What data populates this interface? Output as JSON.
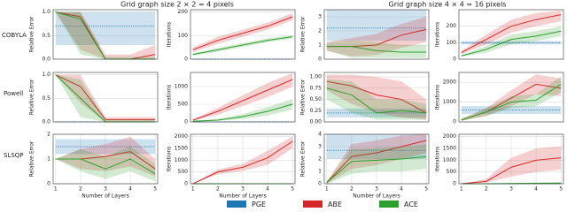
{
  "group_titles": [
    "Grid graph size 2 × 2 = 4 pixels",
    "Grid graph size 4 × 4 = 16 pixels"
  ],
  "row_labels": [
    "COBYLA",
    "Powell",
    "SLSQP"
  ],
  "legend": [
    {
      "name": "PGE",
      "color": "#1f77b4"
    },
    {
      "name": "ABE",
      "color": "#d62728"
    },
    {
      "name": "ACE",
      "color": "#2ca02c"
    }
  ],
  "chart_data": [
    {
      "type": "line",
      "ylabel": "Relative Error",
      "x": [
        1,
        2,
        3,
        4,
        5
      ],
      "xlim": [
        0.9,
        5.1
      ],
      "ylim": [
        0,
        1.05
      ],
      "yticks": [
        {
          "value": 0,
          "label": "0.0"
        },
        0.5,
        {
          "value": 1,
          "label": "1.0"
        }
      ],
      "grid": true,
      "series": [
        {
          "linestyle": "dotted",
          "values": [
            0.7,
            0.7,
            0.7,
            0.7,
            0.7
          ],
          "lower": [
            0.3,
            0.3,
            0.3,
            0.3,
            0.3
          ],
          "upper": [
            1.0,
            1.0,
            1.0,
            1.0,
            1.0
          ]
        },
        {
          "values": [
            1.0,
            0.9,
            0,
            0,
            0.1
          ],
          "lower": [
            1.0,
            0.2,
            0,
            0,
            0
          ],
          "upper": [
            1.0,
            1.0,
            0.1,
            0.1,
            0.3
          ]
        },
        {
          "values": [
            1.0,
            0.85,
            0,
            0,
            0
          ],
          "lower": [
            1.0,
            0.1,
            0,
            0,
            0
          ],
          "upper": [
            1.0,
            1.0,
            0.05,
            0.05,
            0.05
          ]
        }
      ]
    },
    {
      "type": "line",
      "ylabel": "Iterations",
      "x": [
        1,
        2,
        3,
        4,
        5
      ],
      "xlim": [
        0.9,
        5.1
      ],
      "ylim": [
        0,
        210
      ],
      "yticks": [
        0,
        100,
        200
      ],
      "grid": true,
      "series": [
        {
          "linestyle": "dotted",
          "values": [
            0,
            0,
            0,
            0,
            0
          ]
        },
        {
          "values": [
            40,
            80,
            110,
            140,
            180
          ],
          "lower": [
            30,
            65,
            95,
            125,
            165
          ],
          "upper": [
            50,
            95,
            125,
            155,
            195
          ]
        },
        {
          "values": [
            20,
            40,
            60,
            80,
            95
          ],
          "lower": [
            15,
            32,
            52,
            72,
            88
          ],
          "upper": [
            25,
            48,
            68,
            88,
            102
          ]
        }
      ]
    },
    {
      "type": "line",
      "ylabel": "Relative Error",
      "x": [
        1,
        2,
        3,
        4,
        5
      ],
      "xlim": [
        0.9,
        5.1
      ],
      "ylim": [
        0,
        3.5
      ],
      "yticks": [
        0,
        1,
        2,
        3
      ],
      "grid": true,
      "series": [
        {
          "linestyle": "dotted",
          "values": [
            2.2,
            2.2,
            2.2,
            2.2,
            2.2
          ],
          "lower": [
            1.3,
            1.3,
            1.3,
            1.3,
            1.3
          ],
          "upper": [
            3.5,
            3.5,
            3.5,
            3.5,
            3.5
          ]
        },
        {
          "values": [
            0.9,
            0.9,
            1.0,
            1.7,
            2.1
          ],
          "lower": [
            0.6,
            0.2,
            0.3,
            0.8,
            1.2
          ],
          "upper": [
            1.2,
            1.5,
            1.8,
            2.5,
            3.0
          ]
        },
        {
          "values": [
            0.9,
            0.9,
            0.6,
            0.5,
            0.5
          ],
          "lower": [
            0.6,
            0.1,
            0.1,
            0.1,
            0.1
          ],
          "upper": [
            1.2,
            1.3,
            1.2,
            1.0,
            1.0
          ]
        }
      ]
    },
    {
      "type": "line",
      "ylabel": "Iterations",
      "x": [
        1,
        2,
        3,
        4,
        5
      ],
      "xlim": [
        0.9,
        5.1
      ],
      "ylim": [
        0,
        300
      ],
      "yticks": [
        0,
        100,
        200
      ],
      "grid": true,
      "series": [
        {
          "linestyle": "dotted",
          "values": [
            100,
            100,
            100,
            100,
            100
          ],
          "lower": [
            90,
            90,
            90,
            90,
            90
          ],
          "upper": [
            110,
            110,
            110,
            110,
            110
          ]
        },
        {
          "values": [
            40,
            120,
            200,
            240,
            270
          ],
          "lower": [
            30,
            90,
            160,
            200,
            230
          ],
          "upper": [
            50,
            150,
            240,
            280,
            295
          ]
        },
        {
          "values": [
            20,
            60,
            120,
            140,
            170
          ],
          "lower": [
            15,
            40,
            90,
            110,
            140
          ],
          "upper": [
            25,
            80,
            150,
            170,
            200
          ]
        }
      ]
    },
    {
      "type": "line",
      "ylabel": "Relative Error",
      "x": [
        1,
        2,
        3,
        4,
        5
      ],
      "xlim": [
        0.9,
        5.1
      ],
      "ylim": [
        0,
        1.05
      ],
      "yticks": [
        {
          "value": 0,
          "label": "0.0"
        },
        0.5,
        {
          "value": 1,
          "label": "1.0"
        }
      ],
      "grid": true,
      "series": [
        {
          "linestyle": "dotted",
          "values": [
            0,
            0,
            0,
            0,
            0
          ]
        },
        {
          "values": [
            1.0,
            0.75,
            0.05,
            0.05,
            0.05
          ],
          "lower": [
            1.0,
            0.4,
            0,
            0,
            0
          ],
          "upper": [
            1.0,
            1.0,
            0.1,
            0.1,
            0.1
          ]
        },
        {
          "values": [
            1.0,
            0.5,
            0,
            0,
            0
          ],
          "lower": [
            1.0,
            0.1,
            0,
            0,
            0
          ],
          "upper": [
            1.0,
            0.9,
            0.05,
            0.05,
            0.05
          ]
        }
      ]
    },
    {
      "type": "line",
      "ylabel": "Iterations",
      "x": [
        1,
        2,
        3,
        4,
        5
      ],
      "xlim": [
        0.9,
        5.1
      ],
      "ylim": [
        0,
        1400
      ],
      "yticks": [
        0,
        500,
        1000
      ],
      "grid": true,
      "series": [
        {
          "linestyle": "dotted",
          "values": [
            0,
            0,
            0,
            0,
            0
          ]
        },
        {
          "values": [
            50,
            300,
            600,
            900,
            1200
          ],
          "lower": [
            30,
            200,
            450,
            700,
            1000
          ],
          "upper": [
            70,
            400,
            750,
            1100,
            1380
          ]
        },
        {
          "values": [
            20,
            50,
            150,
            300,
            500
          ],
          "lower": [
            10,
            30,
            80,
            180,
            350
          ],
          "upper": [
            30,
            80,
            220,
            420,
            650
          ]
        }
      ]
    },
    {
      "type": "line",
      "ylabel": "Relative Error",
      "x": [
        1,
        2,
        3,
        4,
        5
      ],
      "xlim": [
        0.9,
        5.1
      ],
      "ylim": [
        0,
        1.1
      ],
      "yticks": [
        {
          "value": 0,
          "label": "0.00"
        },
        0.25,
        {
          "value": 0.5,
          "label": "0.50"
        },
        0.75,
        {
          "value": 1,
          "label": "1.00"
        }
      ],
      "grid": true,
      "series": [
        {
          "linestyle": "dotted",
          "values": [
            0.2,
            0.2,
            0.2,
            0.2,
            0.2
          ],
          "lower": [
            0.1,
            0.1,
            0.1,
            0.1,
            0.1
          ],
          "upper": [
            0.3,
            0.3,
            0.3,
            0.3,
            0.3
          ]
        },
        {
          "values": [
            0.9,
            0.8,
            0.6,
            0.5,
            0.2
          ],
          "lower": [
            0.7,
            0.4,
            0.2,
            0.1,
            0.05
          ],
          "upper": [
            1.05,
            1.05,
            1.0,
            0.9,
            0.5
          ]
        },
        {
          "values": [
            0.75,
            0.6,
            0.2,
            0.25,
            0.2
          ],
          "lower": [
            0.5,
            0.2,
            0.05,
            0.05,
            0.05
          ],
          "upper": [
            0.95,
            0.9,
            0.5,
            0.5,
            0.4
          ]
        }
      ]
    },
    {
      "type": "line",
      "ylabel": "Iterations",
      "x": [
        1,
        2,
        3,
        4,
        5
      ],
      "xlim": [
        0.9,
        5.1
      ],
      "ylim": [
        0,
        2500
      ],
      "yticks": [
        0,
        1000,
        2000
      ],
      "grid": true,
      "series": [
        {
          "linestyle": "dotted",
          "values": [
            600,
            600,
            600,
            600,
            600
          ],
          "lower": [
            400,
            400,
            400,
            400,
            400
          ],
          "upper": [
            800,
            800,
            800,
            800,
            800
          ]
        },
        {
          "values": [
            100,
            500,
            1200,
            1900,
            1700
          ],
          "lower": [
            50,
            300,
            800,
            1400,
            1300
          ],
          "upper": [
            150,
            700,
            1600,
            2400,
            2200
          ]
        },
        {
          "values": [
            100,
            500,
            1000,
            1100,
            1900
          ],
          "lower": [
            50,
            300,
            700,
            800,
            1500
          ],
          "upper": [
            150,
            700,
            1300,
            1400,
            2300
          ]
        }
      ]
    },
    {
      "type": "line",
      "ylabel": "Relative Error",
      "xlabel": "Number of Layers",
      "x": [
        1,
        2,
        3,
        4,
        5
      ],
      "xlim": [
        0.9,
        5.1
      ],
      "xticks": [
        1,
        2,
        3,
        4,
        5
      ],
      "ylim": [
        0,
        2
      ],
      "yticks": [
        0,
        1,
        2
      ],
      "grid": true,
      "series": [
        {
          "linestyle": "dotted",
          "values": [
            1.5,
            1.5,
            1.5,
            1.5,
            1.5
          ],
          "lower": [
            1.2,
            1.2,
            1.2,
            1.2,
            1.2
          ],
          "upper": [
            1.8,
            1.8,
            1.8,
            1.8,
            1.8
          ]
        },
        {
          "values": [
            1,
            1,
            1.1,
            1.3,
            0.6
          ],
          "lower": [
            1,
            0.6,
            0.5,
            0.7,
            0.3
          ],
          "upper": [
            1,
            1.4,
            1.6,
            1.9,
            1.0
          ]
        },
        {
          "values": [
            1,
            1,
            0.6,
            1.0,
            0.4
          ],
          "lower": [
            1,
            0.5,
            0.2,
            0.5,
            0.1
          ],
          "upper": [
            1,
            1.4,
            1.1,
            1.5,
            0.8
          ]
        }
      ]
    },
    {
      "type": "line",
      "ylabel": "Iterations",
      "xlabel": "Number of Layers",
      "x": [
        1,
        2,
        3,
        4,
        5
      ],
      "xlim": [
        0.9,
        5.1
      ],
      "xticks": [
        1,
        2,
        3,
        4,
        5
      ],
      "ylim": [
        0,
        2100
      ],
      "yticks": [
        0,
        500,
        1000,
        1500,
        2000
      ],
      "grid": true,
      "series": [
        {
          "linestyle": "dotted",
          "values": [
            0,
            0,
            0,
            0,
            0
          ]
        },
        {
          "values": [
            0,
            500,
            700,
            1100,
            1800
          ],
          "lower": [
            0,
            400,
            550,
            800,
            1500
          ],
          "upper": [
            0,
            600,
            850,
            1400,
            2000
          ]
        },
        {
          "values": [
            0,
            0,
            0,
            0,
            0
          ]
        }
      ]
    },
    {
      "type": "line",
      "ylabel": "Relative Error",
      "xlabel": "Number of Layers",
      "x": [
        1,
        2,
        3,
        4,
        5
      ],
      "xlim": [
        0.9,
        5.1
      ],
      "xticks": [
        1,
        2,
        3,
        4,
        5
      ],
      "ylim": [
        0,
        4
      ],
      "yticks": [
        0,
        1,
        2,
        3,
        4
      ],
      "grid": true,
      "series": [
        {
          "linestyle": "dotted",
          "values": [
            2.7,
            2.7,
            2.7,
            2.7,
            2.7
          ],
          "lower": [
            2,
            2,
            2,
            2,
            2
          ],
          "upper": [
            4,
            4,
            4,
            4,
            4
          ]
        },
        {
          "values": [
            0.1,
            2.2,
            2.5,
            3,
            3.5
          ],
          "lower": [
            0,
            1.2,
            1.5,
            2,
            2.5
          ],
          "upper": [
            0.2,
            3.2,
            3.5,
            3.9,
            4
          ]
        },
        {
          "values": [
            0.1,
            1.8,
            1.9,
            2,
            2.2
          ],
          "lower": [
            0,
            0.8,
            1,
            1,
            1.2
          ],
          "upper": [
            0.2,
            2.8,
            2.9,
            3,
            3.2
          ]
        }
      ]
    },
    {
      "type": "line",
      "ylabel": "Iterations",
      "x": [
        1,
        2,
        3,
        4,
        5
      ],
      "xlim": [
        0.9,
        5.1
      ],
      "xticks": [
        1,
        2,
        3,
        4,
        5
      ],
      "ylim": [
        0,
        2100
      ],
      "yticks": [
        0,
        500,
        1000,
        1500,
        2000
      ],
      "grid": true,
      "series": [
        {
          "linestyle": "dotted",
          "values": [
            0,
            0,
            0,
            0,
            0
          ]
        },
        {
          "values": [
            0,
            100,
            700,
            1000,
            1100
          ],
          "lower": [
            0,
            50,
            300,
            500,
            600
          ],
          "upper": [
            0,
            200,
            1100,
            1500,
            1600
          ]
        },
        {
          "values": [
            0,
            0,
            10,
            20,
            30
          ],
          "lower": [
            0,
            0,
            0,
            0,
            0
          ],
          "upper": [
            0,
            10,
            30,
            50,
            60
          ]
        }
      ]
    }
  ]
}
